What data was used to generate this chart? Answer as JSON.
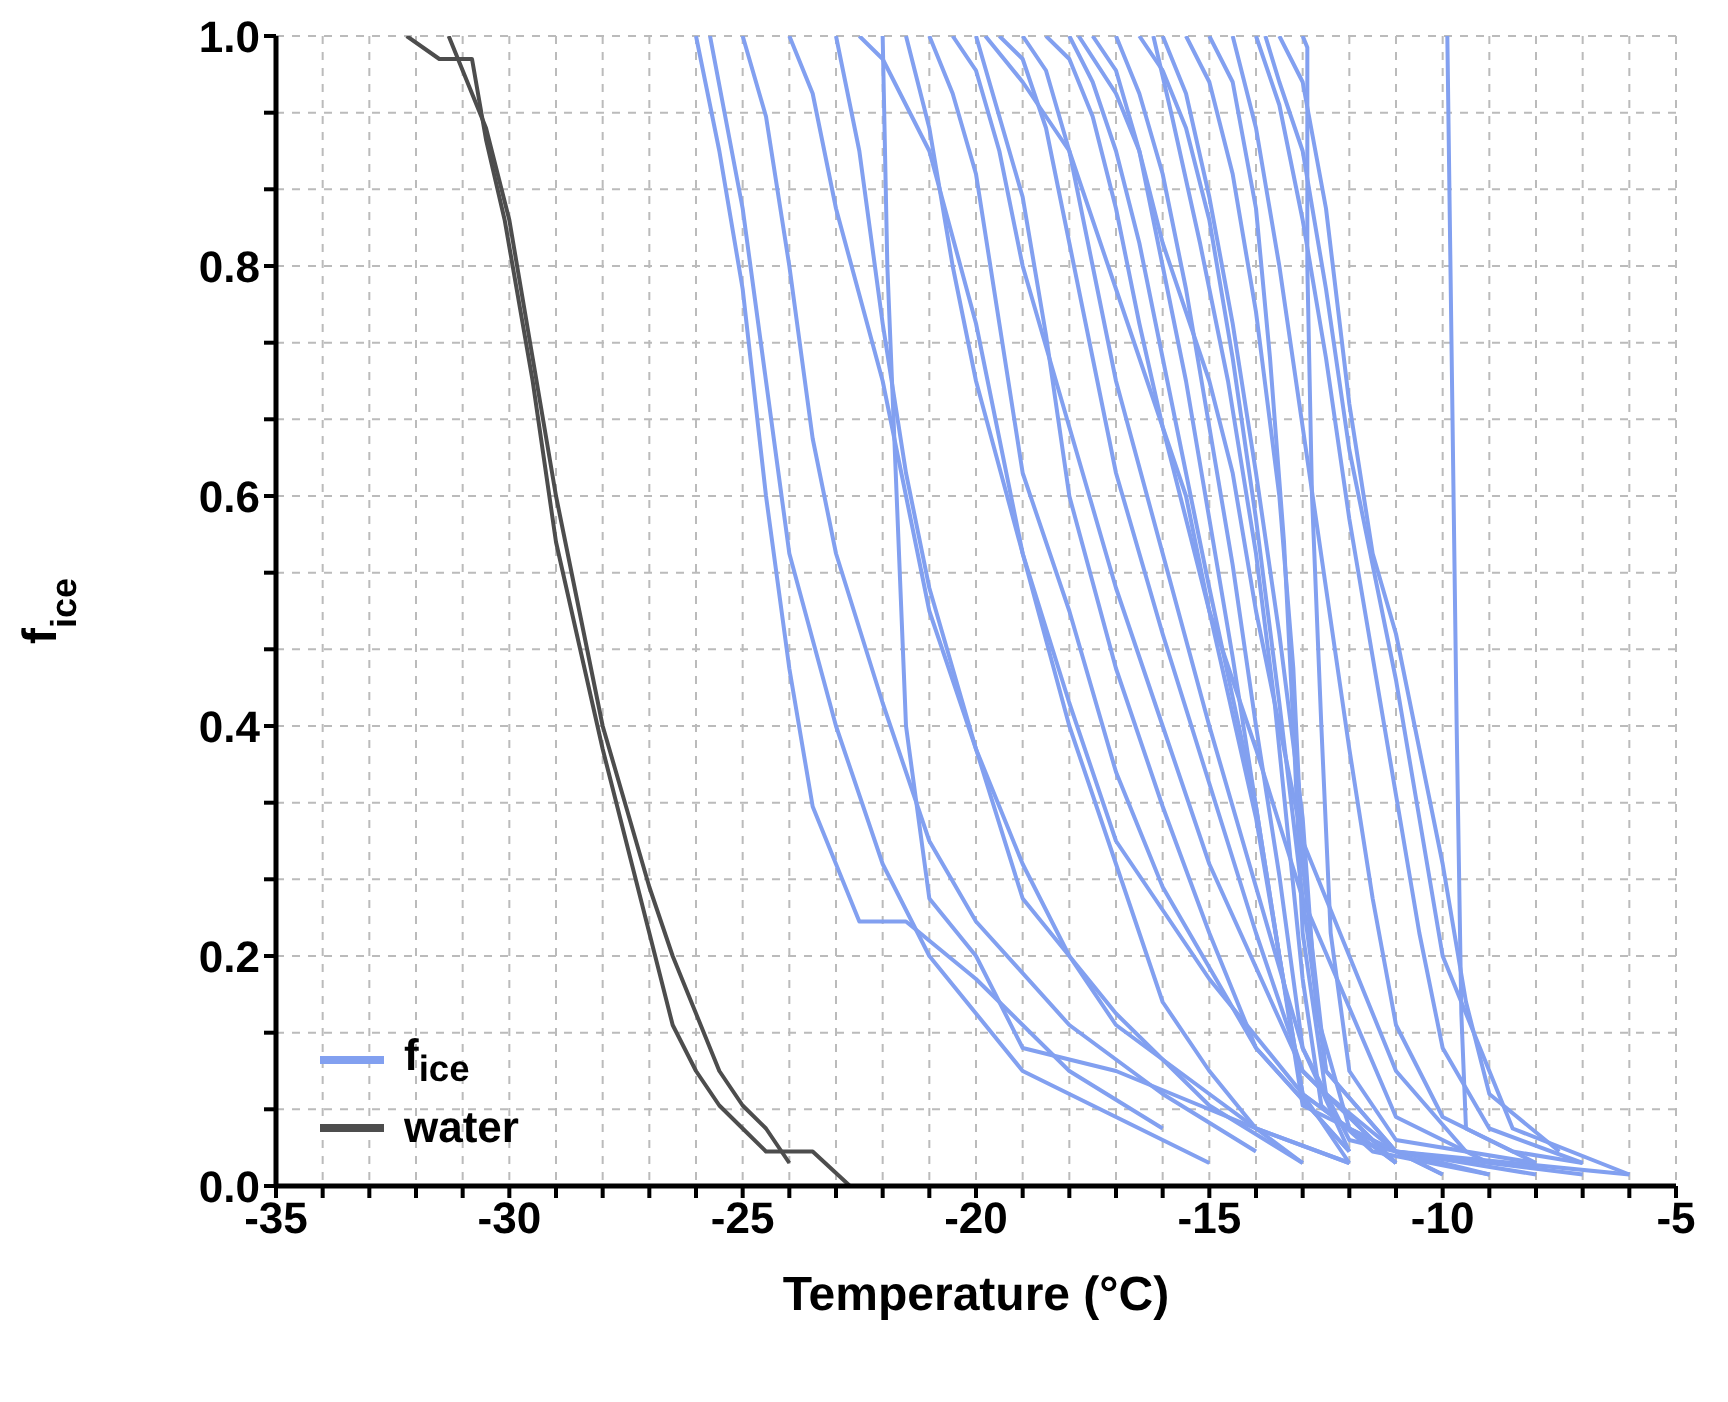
{
  "chart_data": {
    "type": "line",
    "xlabel": "Temperature (°C)",
    "ylabel": "f$_{ice}$",
    "xlim": [
      -35,
      -5
    ],
    "ylim": [
      0,
      1
    ],
    "xticks": [
      -35,
      {
        "value": -34,
        "label": null
      },
      {
        "value": -33,
        "label": null
      },
      {
        "value": -32,
        "label": null
      },
      {
        "value": -31,
        "label": null
      },
      -30,
      {
        "value": -29,
        "label": null
      },
      {
        "value": -28,
        "label": null
      },
      {
        "value": -27,
        "label": null
      },
      {
        "value": -26,
        "label": null
      },
      -25,
      {
        "value": -24,
        "label": null
      },
      {
        "value": -23,
        "label": null
      },
      {
        "value": -22,
        "label": null
      },
      {
        "value": -21,
        "label": null
      },
      -20,
      {
        "value": -19,
        "label": null
      },
      {
        "value": -18,
        "label": null
      },
      {
        "value": -17,
        "label": null
      },
      {
        "value": -16,
        "label": null
      },
      -15,
      {
        "value": -14,
        "label": null
      },
      {
        "value": -13,
        "label": null
      },
      {
        "value": -12,
        "label": null
      },
      {
        "value": -11,
        "label": null
      },
      -10,
      {
        "value": -9,
        "label": null
      },
      {
        "value": -8,
        "label": null
      },
      {
        "value": -7,
        "label": null
      },
      {
        "value": -6,
        "label": null
      },
      -5
    ],
    "yticks": [
      {
        "value": 0,
        "label": "0.0"
      },
      {
        "value": 0.0667,
        "label": null
      },
      {
        "value": 0.1333,
        "label": null
      },
      0.2,
      {
        "value": 0.2667,
        "label": null
      },
      {
        "value": 0.3333,
        "label": null
      },
      0.4,
      {
        "value": 0.4667,
        "label": null
      },
      {
        "value": 0.5333,
        "label": null
      },
      0.6,
      {
        "value": 0.6667,
        "label": null
      },
      {
        "value": 0.7333,
        "label": null
      },
      0.8,
      {
        "value": 0.8667,
        "label": null
      },
      {
        "value": 0.9333,
        "label": null
      },
      {
        "value": 1,
        "label": "1.0"
      }
    ],
    "grid": true,
    "legend": "bottom left",
    "line_style": "solid",
    "marker": "none",
    "series": [
      {
        "name": "f$_{ice}$",
        "color": "#82a0f0",
        "x": [
          -26,
          -25.5,
          -25,
          -24.5,
          -24,
          -23.5,
          -22.5,
          -21.5,
          -20,
          -18,
          -16
        ],
        "values": [
          1,
          0.9,
          0.78,
          0.6,
          0.45,
          0.33,
          0.23,
          0.23,
          0.18,
          0.1,
          0.05
        ]
      },
      {
        "color": "#82a0f0",
        "x": [
          -25.7,
          -25,
          -24.5,
          -24,
          -23,
          -22,
          -21,
          -20,
          -19,
          -17,
          -15
        ],
        "values": [
          1,
          0.85,
          0.7,
          0.55,
          0.4,
          0.28,
          0.2,
          0.15,
          0.1,
          0.06,
          0.02
        ]
      },
      {
        "color": "#82a0f0",
        "x": [
          -25,
          -24.5,
          -24,
          -23.5,
          -23,
          -22,
          -21,
          -20,
          -18,
          -16,
          -14
        ],
        "values": [
          1,
          0.93,
          0.8,
          0.65,
          0.55,
          0.42,
          0.3,
          0.23,
          0.14,
          0.08,
          0.03
        ]
      },
      {
        "color": "#82a0f0",
        "x": [
          -24,
          -23.5,
          -23,
          -22,
          -21,
          -20,
          -19,
          -18,
          -17,
          -15,
          -13
        ],
        "values": [
          1,
          0.95,
          0.85,
          0.7,
          0.5,
          0.38,
          0.28,
          0.2,
          0.14,
          0.08,
          0.02
        ]
      },
      {
        "color": "#82a0f0",
        "x": [
          -23,
          -22.5,
          -22,
          -21.5,
          -21,
          -20,
          -19,
          -17,
          -15,
          -13
        ],
        "values": [
          1,
          0.9,
          0.75,
          0.62,
          0.52,
          0.38,
          0.25,
          0.15,
          0.07,
          0.02
        ]
      },
      {
        "color": "#82a0f0",
        "x": [
          -22,
          -21.9,
          -21.7,
          -21.5,
          -21,
          -20,
          -19,
          -17,
          -14,
          -12
        ],
        "values": [
          1,
          0.8,
          0.6,
          0.4,
          0.25,
          0.2,
          0.12,
          0.1,
          0.05,
          0.02
        ]
      },
      {
        "color": "#82a0f0",
        "x": [
          -21.5,
          -21,
          -20.5,
          -20,
          -19,
          -18,
          -17,
          -15,
          -13,
          -11
        ],
        "values": [
          1,
          0.92,
          0.8,
          0.7,
          0.55,
          0.42,
          0.3,
          0.18,
          0.08,
          0.02
        ]
      },
      {
        "color": "#82a0f0",
        "x": [
          -21,
          -20.5,
          -20,
          -19.5,
          -19,
          -18,
          -17,
          -16,
          -14,
          -12
        ],
        "values": [
          1,
          0.95,
          0.88,
          0.75,
          0.62,
          0.5,
          0.36,
          0.26,
          0.12,
          0.03
        ]
      },
      {
        "color": "#82a0f0",
        "x": [
          -20.5,
          -20,
          -19.5,
          -19,
          -18,
          -17,
          -16,
          -15,
          -13,
          -11
        ],
        "values": [
          1,
          0.97,
          0.9,
          0.8,
          0.66,
          0.52,
          0.4,
          0.28,
          0.1,
          0.02
        ]
      },
      {
        "color": "#82a0f0",
        "x": [
          -20,
          -19.5,
          -19,
          -18.5,
          -18,
          -17,
          -16,
          -15,
          -14,
          -12
        ],
        "values": [
          1,
          0.93,
          0.86,
          0.74,
          0.6,
          0.45,
          0.33,
          0.22,
          0.12,
          0.03
        ]
      },
      {
        "color": "#82a0f0",
        "x": [
          -19.5,
          -19,
          -18.5,
          -18,
          -17.5,
          -17,
          -16,
          -15,
          -14,
          -13,
          -11
        ],
        "values": [
          1,
          0.98,
          0.92,
          0.82,
          0.72,
          0.62,
          0.48,
          0.35,
          0.22,
          0.1,
          0.02
        ]
      },
      {
        "color": "#82a0f0",
        "x": [
          -19,
          -18.5,
          -18,
          -17.5,
          -17,
          -16,
          -15,
          -14,
          -13,
          -12
        ],
        "values": [
          1,
          0.97,
          0.9,
          0.8,
          0.7,
          0.55,
          0.4,
          0.26,
          0.12,
          0.03
        ]
      },
      {
        "color": "#82a0f0",
        "x": [
          -18.5,
          -18,
          -17.5,
          -17,
          -16.5,
          -16,
          -15,
          -14,
          -13.5,
          -13,
          -11
        ],
        "values": [
          1,
          0.98,
          0.93,
          0.85,
          0.75,
          0.66,
          0.5,
          0.32,
          0.2,
          0.08,
          0.02
        ]
      },
      {
        "color": "#82a0f0",
        "x": [
          -18,
          -17.5,
          -17,
          -16.5,
          -16,
          -15.5,
          -15,
          -14,
          -13.5,
          -13,
          -10
        ],
        "values": [
          1,
          0.96,
          0.9,
          0.82,
          0.72,
          0.62,
          0.52,
          0.33,
          0.2,
          0.07,
          0.01
        ]
      },
      {
        "color": "#82a0f0",
        "x": [
          -17.5,
          -17,
          -16.5,
          -16,
          -15.5,
          -15,
          -14.5,
          -14,
          -13.5,
          -13,
          -12
        ],
        "values": [
          1,
          0.97,
          0.9,
          0.8,
          0.7,
          0.58,
          0.46,
          0.33,
          0.2,
          0.08,
          0.02
        ]
      },
      {
        "color": "#82a0f0",
        "x": [
          -17,
          -16.5,
          -16,
          -15.5,
          -15,
          -14.5,
          -14,
          -13.5,
          -13,
          -12,
          -9
        ],
        "values": [
          1,
          0.95,
          0.88,
          0.78,
          0.66,
          0.54,
          0.4,
          0.27,
          0.12,
          0.04,
          0.01
        ]
      },
      {
        "color": "#82a0f0",
        "x": [
          -16.5,
          -16,
          -15.5,
          -15,
          -14.5,
          -14,
          -13.5,
          -13,
          -12.5,
          -11,
          -8
        ],
        "values": [
          1,
          0.97,
          0.92,
          0.84,
          0.72,
          0.58,
          0.42,
          0.25,
          0.1,
          0.03,
          0.01
        ]
      },
      {
        "color": "#82a0f0",
        "x": [
          -16,
          -15.5,
          -15,
          -14.5,
          -14,
          -13.5,
          -13,
          -12.7,
          -12,
          -10
        ],
        "values": [
          1,
          0.95,
          0.86,
          0.75,
          0.62,
          0.48,
          0.32,
          0.15,
          0.05,
          0.01
        ]
      },
      {
        "color": "#82a0f0",
        "x": [
          -15.5,
          -15,
          -14.5,
          -14,
          -13.5,
          -13.2,
          -13,
          -12.5,
          -11,
          -7
        ],
        "values": [
          1,
          0.96,
          0.88,
          0.76,
          0.6,
          0.45,
          0.28,
          0.1,
          0.03,
          0.01
        ]
      },
      {
        "color": "#82a0f0",
        "x": [
          -15,
          -14.5,
          -14,
          -13.7,
          -13.4,
          -13.2,
          -13,
          -12.5,
          -11,
          -6
        ],
        "values": [
          1,
          0.96,
          0.85,
          0.72,
          0.56,
          0.4,
          0.22,
          0.08,
          0.03,
          0.01
        ]
      },
      {
        "color": "#82a0f0",
        "x": [
          -14.5,
          -14,
          -13.5,
          -13,
          -12.5,
          -12,
          -11.5,
          -11,
          -10,
          -8
        ],
        "values": [
          1,
          0.92,
          0.8,
          0.66,
          0.52,
          0.38,
          0.25,
          0.14,
          0.06,
          0.02
        ]
      },
      {
        "color": "#82a0f0",
        "x": [
          -14,
          -13.5,
          -13,
          -12.5,
          -12,
          -11.5,
          -11,
          -10.5,
          -10,
          -9,
          -7
        ],
        "values": [
          1,
          0.94,
          0.84,
          0.72,
          0.58,
          0.46,
          0.34,
          0.22,
          0.12,
          0.05,
          0.02
        ]
      },
      {
        "color": "#82a0f0",
        "x": [
          -13.5,
          -13,
          -12.5,
          -12,
          -11.5,
          -11,
          -10.5,
          -10,
          -9.5,
          -9,
          -7.5
        ],
        "values": [
          1,
          0.96,
          0.85,
          0.68,
          0.55,
          0.48,
          0.38,
          0.28,
          0.16,
          0.08,
          0.03
        ]
      },
      {
        "color": "#82a0f0",
        "x": [
          -13,
          -12.9,
          -12.9,
          -12.8,
          -12.6,
          -12.4,
          -12,
          -11,
          -8
        ],
        "values": [
          1,
          0.99,
          0.8,
          0.6,
          0.4,
          0.22,
          0.1,
          0.04,
          0.02
        ]
      },
      {
        "color": "#82a0f0",
        "x": [
          -13.8,
          -13.5,
          -13,
          -12.5,
          -12,
          -11.5,
          -11,
          -10.5,
          -10,
          -8.5,
          -6
        ],
        "values": [
          1,
          0.96,
          0.9,
          0.78,
          0.64,
          0.54,
          0.44,
          0.32,
          0.2,
          0.05,
          0.01
        ]
      },
      {
        "color": "#82a0f0",
        "x": [
          -9.9,
          -9.8,
          -9.7,
          -9.6,
          -9.5,
          -8.5,
          -7
        ],
        "values": [
          1,
          0.7,
          0.4,
          0.15,
          0.05,
          0.03,
          0.02
        ]
      },
      {
        "color": "#82a0f0",
        "x": [
          -19.8,
          -19,
          -18,
          -17,
          -16,
          -15.5,
          -15,
          -14,
          -13,
          -11,
          -9
        ],
        "values": [
          1,
          0.96,
          0.9,
          0.78,
          0.66,
          0.6,
          0.5,
          0.38,
          0.25,
          0.06,
          0.02
        ]
      },
      {
        "color": "#82a0f0",
        "x": [
          -17.8,
          -17,
          -16.5,
          -16,
          -15,
          -14.5,
          -14,
          -13,
          -12,
          -11,
          -9.5
        ],
        "values": [
          1,
          0.95,
          0.9,
          0.82,
          0.7,
          0.62,
          0.5,
          0.3,
          0.2,
          0.1,
          0.03
        ]
      },
      {
        "color": "#82a0f0",
        "x": [
          -22.5,
          -22,
          -21,
          -20,
          -19,
          -18,
          -17,
          -16,
          -15,
          -14,
          -12
        ],
        "values": [
          1,
          0.98,
          0.9,
          0.75,
          0.55,
          0.4,
          0.28,
          0.16,
          0.1,
          0.05,
          0.02
        ]
      },
      {
        "color": "#82a0f0",
        "x": [
          -16.2,
          -15.8,
          -15.2,
          -14.6,
          -14,
          -13.6,
          -13.3,
          -13,
          -12.6,
          -11.5,
          -9
        ],
        "values": [
          1,
          0.93,
          0.82,
          0.7,
          0.55,
          0.42,
          0.3,
          0.18,
          0.07,
          0.03,
          0.01
        ]
      },
      {
        "name": "water",
        "color": "#4d4d4d",
        "x": [
          -32.2,
          -31.5,
          -30.8,
          -30.5,
          -30.1,
          -29.5,
          -29,
          -28.5,
          -28,
          -27.5,
          -27,
          -26.5,
          -26,
          -25.5,
          -25,
          -24.5,
          -23.5,
          -22.7
        ],
        "values": [
          1,
          0.98,
          0.98,
          0.91,
          0.84,
          0.7,
          0.56,
          0.47,
          0.38,
          0.3,
          0.22,
          0.14,
          0.1,
          0.07,
          0.05,
          0.03,
          0.03,
          0.0
        ]
      },
      {
        "color": "#4d4d4d",
        "x": [
          -31.3,
          -30.5,
          -30,
          -29.5,
          -29,
          -28.5,
          -28,
          -27.5,
          -27,
          -26.5,
          -26,
          -25.5,
          -25,
          -24.5,
          -24
        ],
        "values": [
          1,
          0.92,
          0.84,
          0.72,
          0.6,
          0.5,
          0.4,
          0.33,
          0.26,
          0.2,
          0.15,
          0.1,
          0.07,
          0.05,
          0.02
        ]
      }
    ]
  }
}
